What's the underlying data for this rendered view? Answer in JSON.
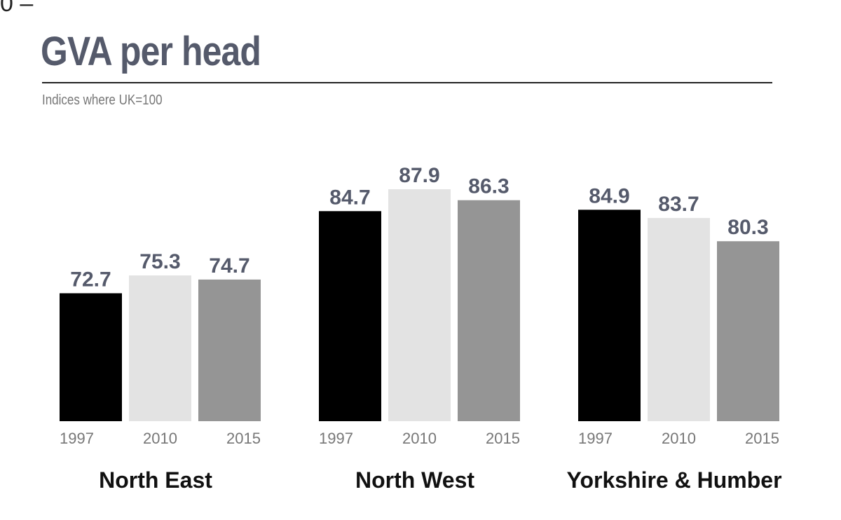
{
  "corner_mark": "0 –",
  "colors": {
    "1997": "#000000",
    "2010": "#e3e3e3",
    "2015": "#959595",
    "label": "#555a6b"
  },
  "chart_data": {
    "type": "bar",
    "title": "GVA per head",
    "subtitle": "Indices where UK=100",
    "categories": [
      "North East",
      "North West",
      "Yorkshire & Humber"
    ],
    "series": [
      {
        "name": "1997",
        "values": [
          72.7,
          84.7,
          84.9
        ]
      },
      {
        "name": "2010",
        "values": [
          75.3,
          87.9,
          83.7
        ]
      },
      {
        "name": "2015",
        "values": [
          74.7,
          86.3,
          80.3
        ]
      }
    ],
    "value_labels": [
      [
        "72.7",
        "75.3",
        "74.7"
      ],
      [
        "84.7",
        "87.9",
        "86.3"
      ],
      [
        "84.9",
        "83.7",
        "80.3"
      ]
    ],
    "ylim": [
      54,
      92
    ],
    "grid": false,
    "legend": "none"
  }
}
